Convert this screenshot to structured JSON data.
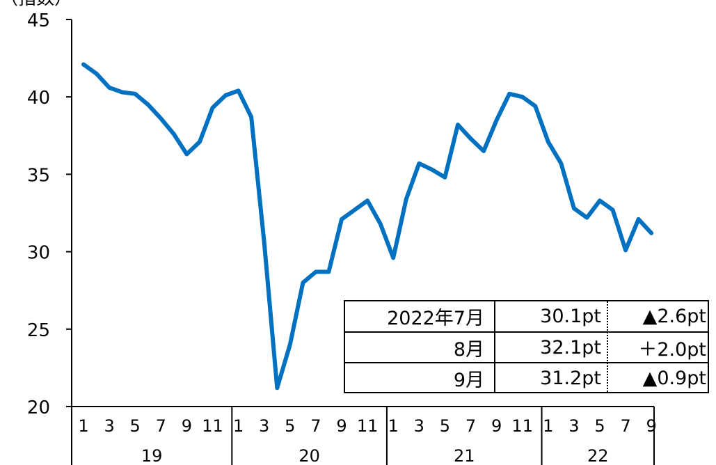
{
  "chart_data": {
    "type": "line",
    "ylabel": "（指数）",
    "ylim": [
      20,
      45
    ],
    "yticks": [
      "45",
      "40",
      "35",
      "30",
      "25",
      "20"
    ],
    "x_month_ticks": [
      "1",
      "3",
      "5",
      "7",
      "9",
      "11",
      "1",
      "3",
      "5",
      "7",
      "9",
      "11",
      "1",
      "3",
      "5",
      "7",
      "9",
      "11",
      "1",
      "3",
      "5",
      "7",
      "9"
    ],
    "year_labels": [
      "19",
      "20",
      "21",
      "22"
    ],
    "line_color": "#0070C0",
    "series": [
      {
        "values": [
          42.1,
          41.5,
          40.6,
          40.3,
          40.2,
          39.5,
          38.6,
          37.6,
          36.3,
          37.1,
          39.3,
          40.1,
          40.4,
          38.7,
          30.6,
          21.2,
          24.0,
          28.0,
          28.7,
          28.7,
          32.1,
          32.7,
          33.3,
          31.8,
          29.6,
          33.4,
          35.7,
          35.3,
          34.8,
          38.2,
          37.3,
          36.5,
          38.5,
          40.2,
          40.0,
          39.4,
          37.1,
          35.7,
          32.8,
          32.2,
          33.3,
          32.7,
          30.1,
          32.1,
          31.2
        ]
      }
    ],
    "table": {
      "rows": [
        {
          "period": "2022年7月",
          "value": "30.1pt",
          "change": "▲2.6pt"
        },
        {
          "period": "8月",
          "value": "32.1pt",
          "change": "＋2.0pt"
        },
        {
          "period": "9月",
          "value": "31.2pt",
          "change": "▲0.9pt"
        }
      ]
    }
  }
}
